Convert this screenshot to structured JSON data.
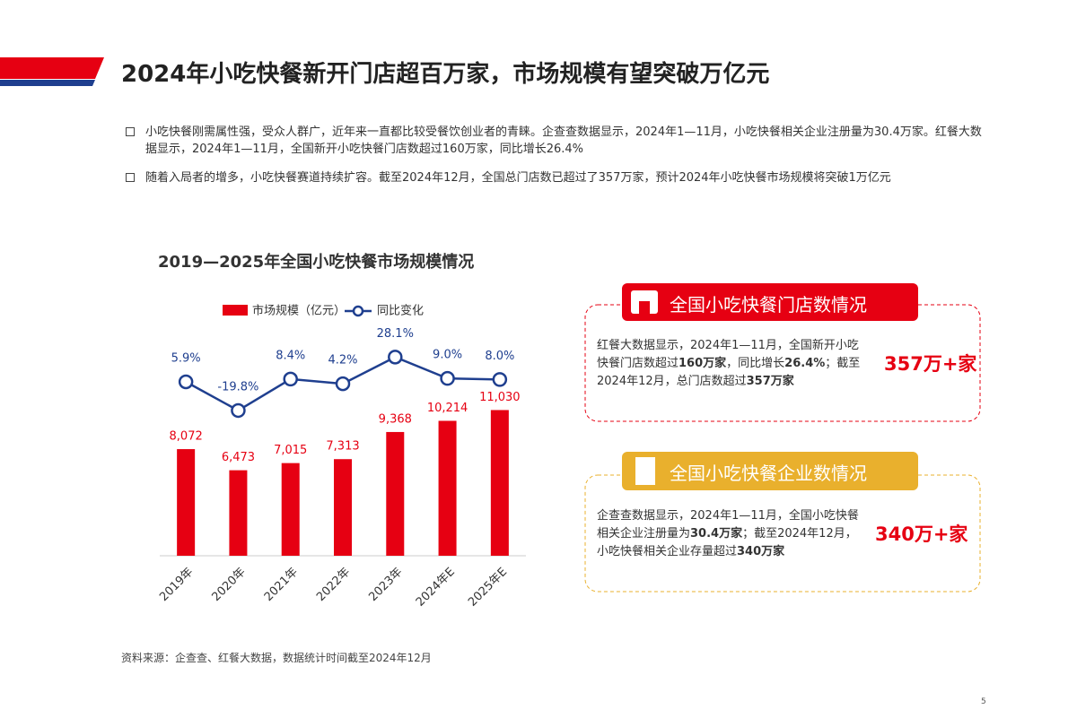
{
  "header": {
    "title": "2024年小吃快餐新开门店超百万家，市场规模有望突破万亿元"
  },
  "bullets": [
    "小吃快餐刚需属性强，受众人群广，近年来一直都比较受餐饮创业者的青睐。企查查数据显示，2024年1—11月，小吃快餐相关企业注册量为30.4万家。红餐大数据显示，2024年1—11月，全国新开小吃快餐门店数超过160万家，同比增长26.4%",
    "随着入局者的增多，小吃快餐赛道持续扩容。截至2024年12月，全国总门店数已超过了357万家，预计2024年小吃快餐市场规模将突破1万亿元"
  ],
  "chart_data": {
    "type": "bar-line",
    "title": "2019—2025年全国小吃快餐市场规模情况",
    "categories": [
      "2019年",
      "2020年",
      "2021年",
      "2022年",
      "2023年",
      "2024年E",
      "2025年E"
    ],
    "series": [
      {
        "name": "市场规模（亿元）",
        "color": "#e60012",
        "values": [
          8072,
          6473,
          7015,
          7313,
          9368,
          10214,
          11030
        ],
        "value_labels": [
          "8,072",
          "6,473",
          "7,015",
          "7,313",
          "9,368",
          "10,214",
          "11,030"
        ]
      },
      {
        "name": "同比变化",
        "color": "#1f3f8f",
        "axis": "y2",
        "values": [
          5.9,
          -19.8,
          8.4,
          4.2,
          28.1,
          9.0,
          8.0
        ],
        "value_labels": [
          "5.9%",
          "-19.8%",
          "8.4%",
          "4.2%",
          "28.1%",
          "9.0%",
          "8.0%"
        ]
      }
    ],
    "ylim": [
      0,
      19000
    ],
    "y2lim": [
      -150,
      75
    ]
  },
  "cards": [
    {
      "title": "全国小吃快餐门店数情况",
      "body": [
        "红餐大数据显示，2024年1—11月，全国新开小吃快餐门店数超过",
        "160万家",
        "，同比增长",
        "26.4%",
        "；截至2024年12月，总门店数超过",
        "357万家"
      ],
      "highlight": "357万+家"
    },
    {
      "title": "全国小吃快餐企业数情况",
      "body": [
        "企查查数据显示，2024年1—11月，全国小吃快餐相关企业注册量为",
        "30.4万家",
        "；截至2024年12月，小吃快餐相关企业存量超过",
        "340万家"
      ],
      "highlight": "340万+家"
    }
  ],
  "source": "资料来源：企查查、红餐大数据，数据统计时间截至2024年12月",
  "page": "5"
}
